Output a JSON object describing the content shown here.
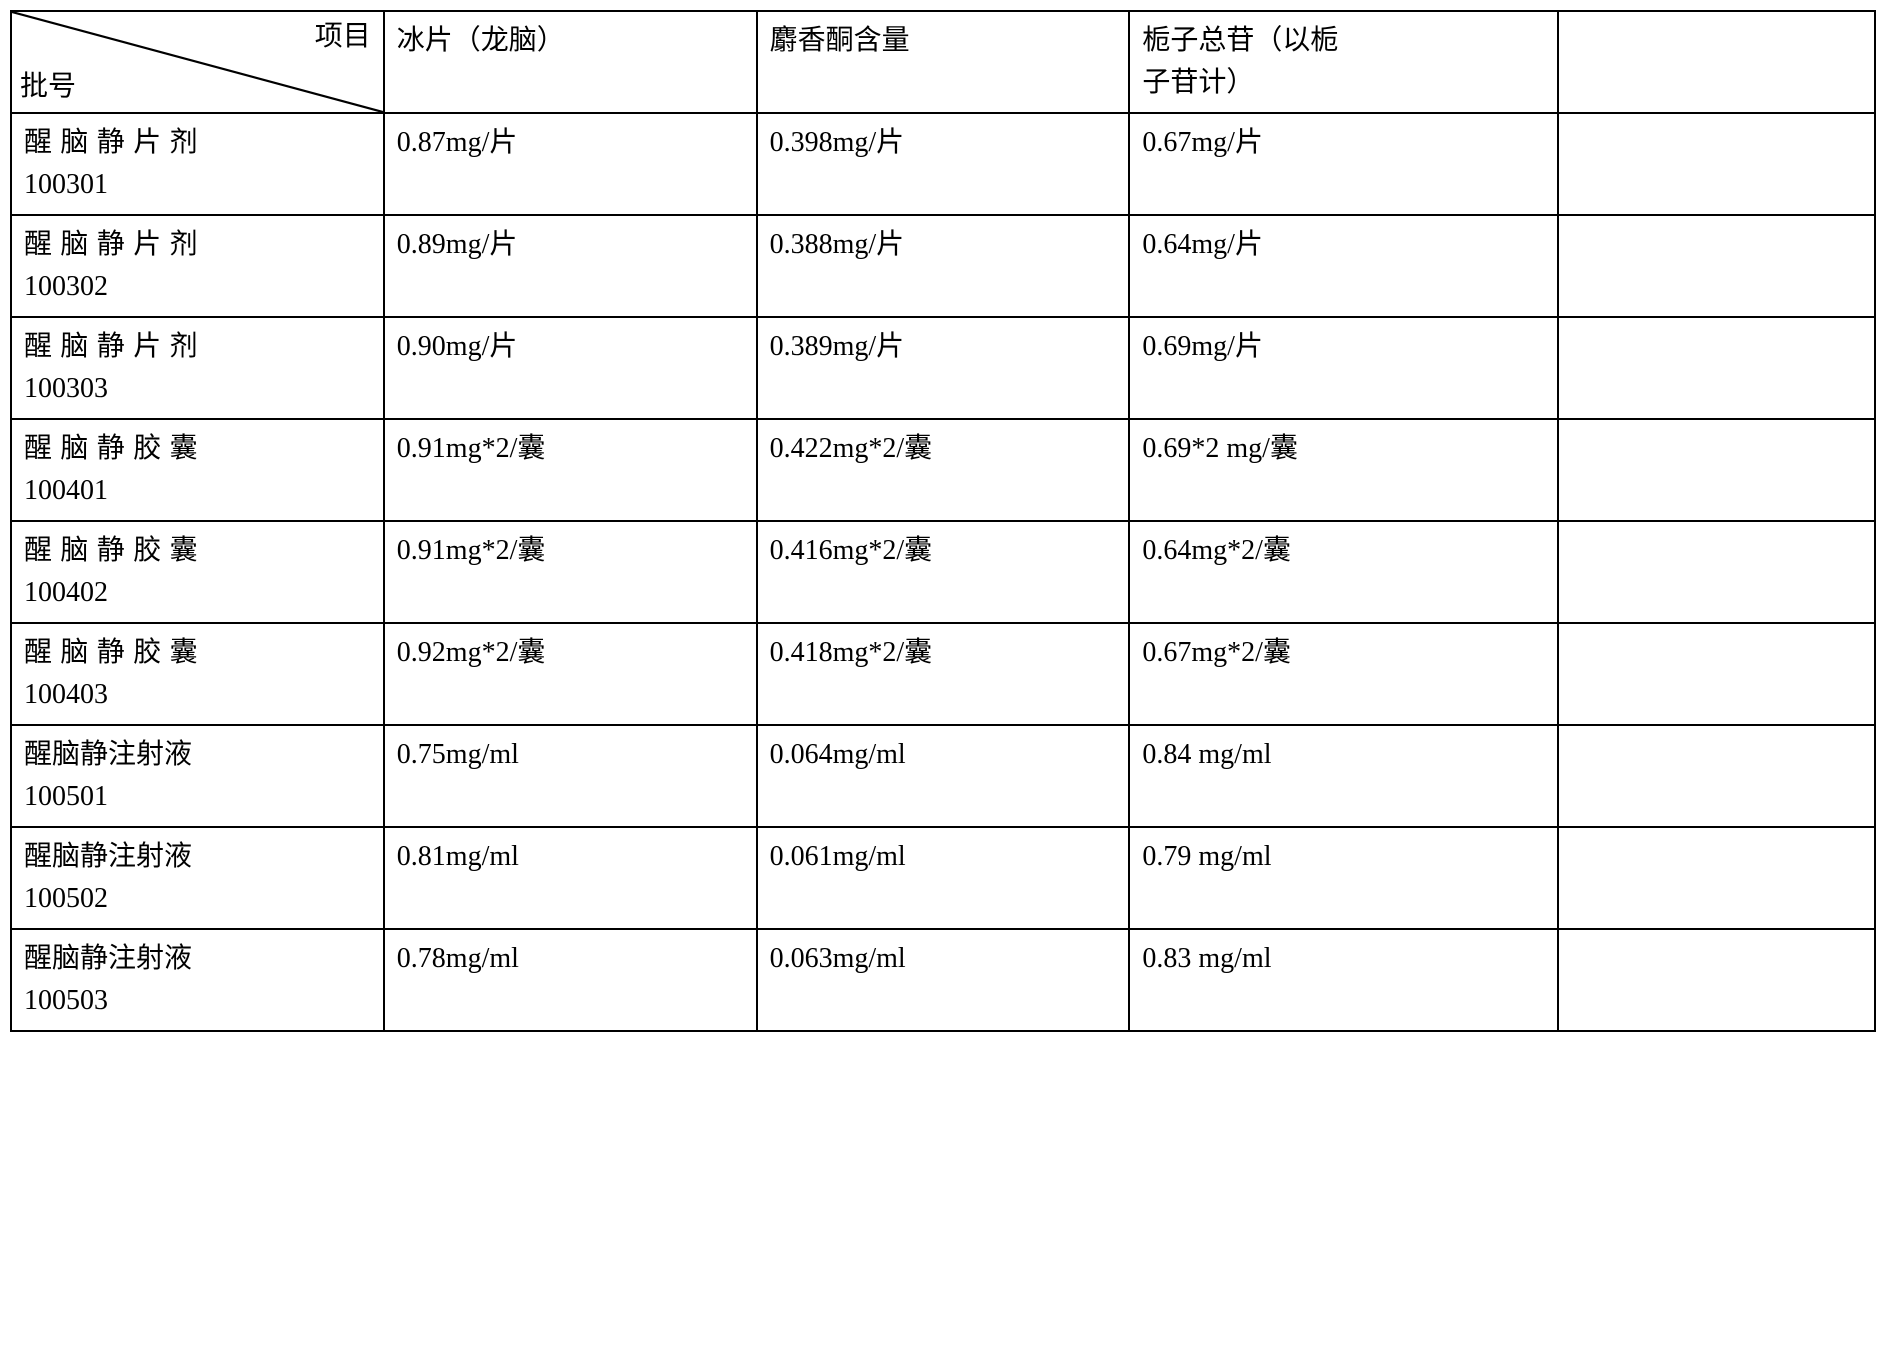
{
  "table": {
    "header": {
      "diagonal_top": "项目",
      "diagonal_bottom": "批号",
      "col1": "冰片（龙脑）",
      "col2": "麝香酮含量",
      "col3_line1": "栀子总苷（以栀",
      "col3_line2": "子苷计）",
      "col4": ""
    },
    "rows": [
      {
        "label_line1": "醒脑静片剂",
        "label_line1_spaced": true,
        "label_line2": "100301",
        "c1": "0.87mg/片",
        "c2": "0.398mg/片",
        "c3": "0.67mg/片",
        "c4": ""
      },
      {
        "label_line1": "醒脑静片剂",
        "label_line1_spaced": true,
        "label_line2": "100302",
        "c1": "0.89mg/片",
        "c2": "0.388mg/片",
        "c3": "0.64mg/片",
        "c4": ""
      },
      {
        "label_line1": "醒脑静片剂",
        "label_line1_spaced": true,
        "label_line2": "100303",
        "c1": "0.90mg/片",
        "c2": "0.389mg/片",
        "c3": "0.69mg/片",
        "c4": ""
      },
      {
        "label_line1": "醒脑静胶囊",
        "label_line1_spaced": true,
        "label_line2": "100401",
        "c1": "0.91mg*2/囊",
        "c2": "0.422mg*2/囊",
        "c3": "0.69*2 mg/囊",
        "c4": ""
      },
      {
        "label_line1": "醒脑静胶囊",
        "label_line1_spaced": true,
        "label_line2": "100402",
        "c1": "0.91mg*2/囊",
        "c2": "0.416mg*2/囊",
        "c3": "0.64mg*2/囊",
        "c4": ""
      },
      {
        "label_line1": "醒脑静胶囊",
        "label_line1_spaced": true,
        "label_line2": "100403",
        "c1": "0.92mg*2/囊",
        "c2": "0.418mg*2/囊",
        "c3": "0.67mg*2/囊",
        "c4": ""
      },
      {
        "label_line1": "醒脑静注射液",
        "label_line1_spaced": false,
        "label_line2": "100501",
        "c1": "0.75mg/ml",
        "c2": "0.064mg/ml",
        "c3": "0.84 mg/ml",
        "c4": ""
      },
      {
        "label_line1": "醒脑静注射液",
        "label_line1_spaced": false,
        "label_line2": "100502",
        "c1": "0.81mg/ml",
        "c2": "0.061mg/ml",
        "c3": "0.79 mg/ml",
        "c4": ""
      },
      {
        "label_line1": "醒脑静注射液",
        "label_line1_spaced": false,
        "label_line2": "100503",
        "c1": "0.78mg/ml",
        "c2": "0.063mg/ml",
        "c3": "0.83 mg/ml",
        "c4": ""
      }
    ],
    "styling": {
      "border_color": "#000000",
      "border_width": 2,
      "background_color": "#ffffff",
      "text_color": "#000000",
      "font_family": "SimSun",
      "font_size": 28,
      "column_widths_pct": [
        20,
        20,
        20,
        23,
        17
      ]
    }
  }
}
